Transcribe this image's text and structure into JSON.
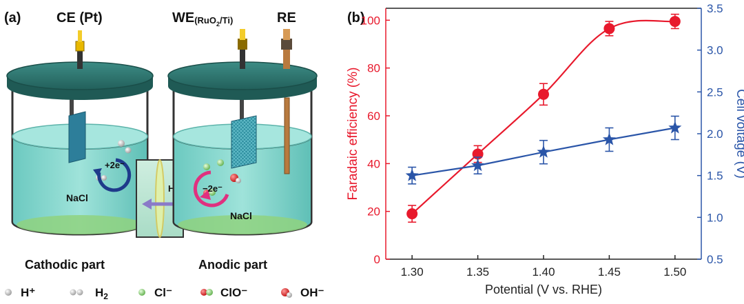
{
  "panel_a": {
    "label": "(a)",
    "ce_label": "CE (Pt)",
    "we_label": "WE",
    "we_sub_pre": "(RuO",
    "we_sub_num": "2",
    "we_sub_post": "/Ti)",
    "re_label": "RE",
    "cathode_reaction": "+2e⁻",
    "anode_reaction": "−2e⁻",
    "proton_label": "H⁺",
    "nacl_left": "NaCl",
    "nacl_right": "NaCl",
    "cathodic_label": "Cathodic part",
    "anodic_label": "Anodic part",
    "legend": [
      {
        "text": "H⁺",
        "icon": "h-plus-icon"
      },
      {
        "text": "H",
        "sub": "2",
        "icon": "h2-molecule-icon"
      },
      {
        "text": "Cl⁻",
        "icon": "chloride-icon"
      },
      {
        "text": "ClO⁻",
        "icon": "hypochlorite-icon"
      },
      {
        "text": "OH⁻",
        "icon": "hydroxide-icon"
      }
    ],
    "colors": {
      "lid": "#2f7a74",
      "liquid": "#7fd4cc",
      "electrolyte_base": "#8fd27f",
      "terminal": "#e8b800",
      "cathode_arrow": "#1e3a8a",
      "anode_arrow": "#e0307f",
      "proton_arrow": "#8a7ac8"
    }
  },
  "chart_data": {
    "panel_label": "(b)",
    "type": "line",
    "xlabel": "Potential (V vs. RHE)",
    "x": [
      1.3,
      1.35,
      1.4,
      1.45,
      1.5
    ],
    "x_ticks": [
      "1.30",
      "1.35",
      "1.40",
      "1.45",
      "1.50"
    ],
    "xlim": [
      1.28,
      1.52
    ],
    "left_axis": {
      "label": "Faradaic efficiency (%)",
      "ylim": [
        0,
        105
      ],
      "ticks": [
        "0",
        "20",
        "40",
        "60",
        "80",
        "100"
      ],
      "color": "#e8192c"
    },
    "right_axis": {
      "label": "Cell voltage (V)",
      "ylim": [
        0.5,
        3.5
      ],
      "ticks": [
        "0.5",
        "1.0",
        "1.5",
        "2.0",
        "2.5",
        "3.0",
        "3.5"
      ],
      "color": "#2a55a8"
    },
    "series": [
      {
        "axis": "left",
        "marker": "circle",
        "color": "#e8192c",
        "values": [
          19,
          44,
          69,
          96.5,
          99.5
        ],
        "errors": [
          3.5,
          3.5,
          4.5,
          3,
          3
        ]
      },
      {
        "axis": "right",
        "marker": "star",
        "color": "#2a55a8",
        "values": [
          1.5,
          1.62,
          1.78,
          1.93,
          2.07
        ],
        "errors": [
          0.1,
          0.1,
          0.14,
          0.14,
          0.14
        ]
      }
    ]
  }
}
